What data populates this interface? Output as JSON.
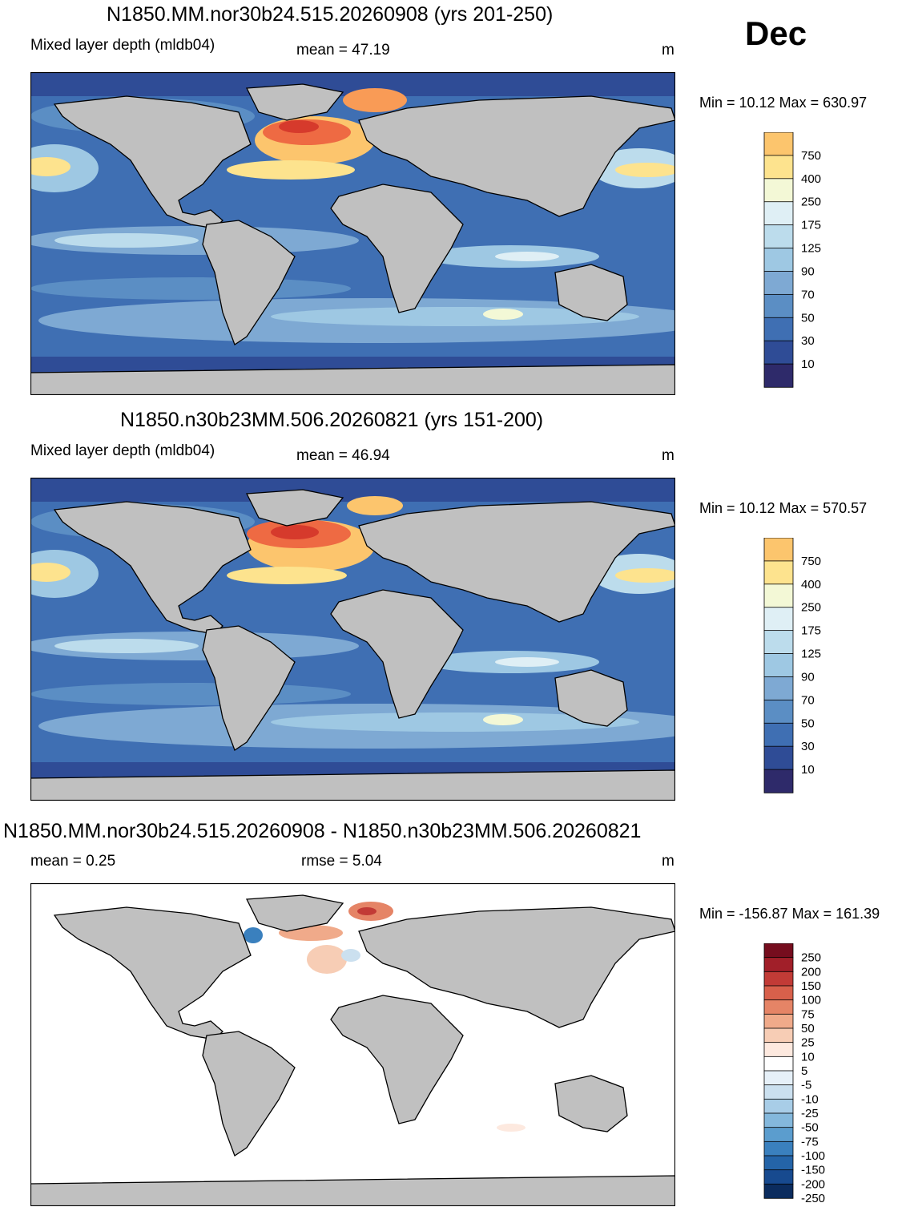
{
  "month": "Dec",
  "colors": {
    "land": "#c0c0c0",
    "abs_scale": [
      "#2e2a6a",
      "#2f4c96",
      "#3f6fb3",
      "#5b8ec4",
      "#7ea9d3",
      "#9ec8e3",
      "#bcdcec",
      "#dfeff5",
      "#f3f8d6",
      "#fde38e",
      "#fcc56d",
      "#f99b56",
      "#ee6a43",
      "#d63a2c",
      "#a21c22",
      "#670016"
    ],
    "diff_scale": [
      "#0b2c5e",
      "#174a8f",
      "#2464a8",
      "#3a80be",
      "#5b9dce",
      "#84b8dc",
      "#a8cde7",
      "#cbe0ef",
      "#e6f0f8",
      "#ffffff",
      "#fde9df",
      "#f7cdb5",
      "#f0aa8a",
      "#e58466",
      "#d8604b",
      "#c23b36",
      "#a11f29",
      "#760d1e"
    ]
  },
  "panels": [
    {
      "title": "N1850.MM.nor30b24.515.20260908 (yrs 201-250)",
      "left_label": "Mixed layer depth (mldb04)",
      "stat_label": "mean =  47.19",
      "units": "m",
      "minmax": "Min =  10.12 Max = 630.97",
      "colorbar_labels": [
        "750",
        "400",
        "250",
        "175",
        "125",
        "90",
        "70",
        "50",
        "30",
        "10"
      ]
    },
    {
      "title": "N1850.n30b23MM.506.20260821 (yrs 151-200)",
      "left_label": "Mixed layer depth (mldb04)",
      "stat_label": "mean =  46.94",
      "units": "m",
      "minmax": "Min =  10.12 Max = 570.57",
      "colorbar_labels": [
        "750",
        "400",
        "250",
        "175",
        "125",
        "90",
        "70",
        "50",
        "30",
        "10"
      ]
    },
    {
      "title": "N1850.MM.nor30b24.515.20260908 - N1850.n30b23MM.506.20260821",
      "left_label": "mean =   0.25",
      "stat_label": "rmse =   5.04",
      "units": "m",
      "minmax": "Min = -156.87 Max = 161.39",
      "colorbar_labels": [
        "250",
        "200",
        "150",
        "100",
        "75",
        "50",
        "25",
        "10",
        "5",
        "-5",
        "-10",
        "-25",
        "-50",
        "-75",
        "-100",
        "-150",
        "-200",
        "-250"
      ]
    }
  ]
}
